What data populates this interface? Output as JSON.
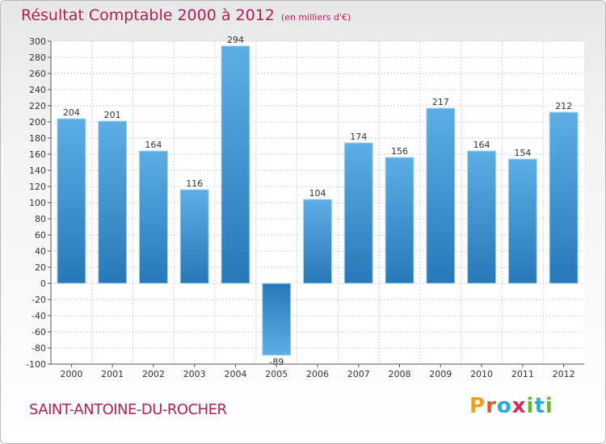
{
  "title": "Résultat Comptable 2000 à 2012",
  "subtitle": "(en milliers d'€)",
  "commune": "SAINT-ANTOINE-DU-ROCHER",
  "logo": {
    "text": "Proxiti",
    "letters": [
      "P",
      "r",
      "o",
      "x",
      "i",
      "t",
      "i"
    ],
    "letter_colors": [
      "#f0a020",
      "#e05a28",
      "#2aa7dc",
      "#d22c5a",
      "#6ab82a",
      "#2aa7dc",
      "#6ab82a"
    ]
  },
  "colors": {
    "bar_light": "#5daee4",
    "bar_dark": "#2878b8",
    "title": "#b01e5a"
  },
  "chart_data": {
    "type": "bar",
    "title": "Résultat Comptable 2000 à 2012",
    "xlabel": "",
    "ylabel": "en milliers d'€",
    "categories": [
      "2000",
      "2001",
      "2002",
      "2003",
      "2004",
      "2005",
      "2006",
      "2007",
      "2008",
      "2009",
      "2010",
      "2011",
      "2012"
    ],
    "values": [
      204,
      201,
      164,
      116,
      294,
      -89,
      104,
      174,
      156,
      217,
      164,
      154,
      212
    ],
    "ylim": [
      -100,
      300
    ],
    "yticks": [
      -100,
      -80,
      -60,
      -40,
      -20,
      0,
      20,
      40,
      60,
      80,
      100,
      120,
      140,
      160,
      180,
      200,
      220,
      240,
      260,
      280,
      300
    ],
    "grid": true
  }
}
